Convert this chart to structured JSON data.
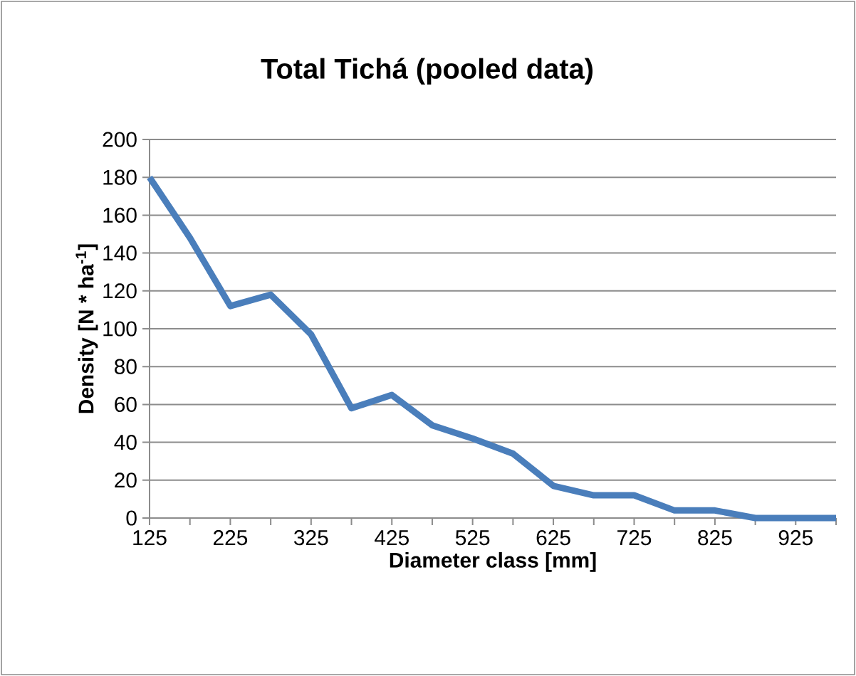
{
  "chart_data": {
    "type": "line",
    "title": "Total Tichá (pooled data)",
    "xlabel": "Diameter class [mm]",
    "ylabel": "Density [N * ha$^{-1}$]",
    "categories": [
      "125",
      null,
      "225",
      null,
      "325",
      null,
      "425",
      null,
      "525",
      null,
      "625",
      null,
      "725",
      null,
      "825",
      null,
      "925",
      null
    ],
    "series": [
      {
        "color": "#4a7ebb",
        "values": [
          180,
          148,
          112,
          118,
          97,
          58,
          65,
          49,
          42,
          34,
          17,
          12,
          12,
          4,
          4,
          0,
          0,
          0
        ]
      }
    ],
    "ylim": [
      0,
      200
    ],
    "yticks": [
      0,
      20,
      40,
      60,
      80,
      100,
      120,
      140,
      160,
      180,
      200
    ],
    "grid": "y",
    "line_style": "solid"
  }
}
